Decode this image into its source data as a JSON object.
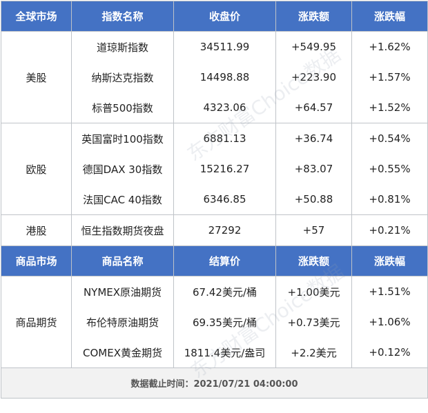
{
  "header_global": [
    "全球市场",
    "指数名称",
    "收盘价",
    "涨跌额",
    "涨跌幅"
  ],
  "groups_global": [
    {
      "region": "美股",
      "rows": [
        [
          "道琼斯指数",
          "34511.99",
          "+549.95",
          "+1.62%"
        ],
        [
          "纳斯达克指数",
          "14498.88",
          "+223.90",
          "+1.57%"
        ],
        [
          "标普500指数",
          "4323.06",
          "+64.57",
          "+1.52%"
        ]
      ]
    },
    {
      "region": "欧股",
      "rows": [
        [
          "英国富时100指数",
          "6881.13",
          "+36.74",
          "+0.54%"
        ],
        [
          "德国DAX 30指数",
          "15216.27",
          "+83.07",
          "+0.55%"
        ],
        [
          "法国CAC 40指数",
          "6346.85",
          "+50.88",
          "+0.81%"
        ]
      ]
    },
    {
      "region": "港股",
      "rows": [
        [
          "恒生指数期货夜盘",
          "27292",
          "+57",
          "+0.21%"
        ]
      ]
    }
  ],
  "header_commodity": [
    "商品市场",
    "商品名称",
    "结算价",
    "涨跌额",
    "涨跌幅"
  ],
  "groups_commodity": [
    {
      "region": "商品期货",
      "rows": [
        [
          "NYMEX原油期货",
          "67.42美元/桶",
          "+1.00美元",
          "+1.51%"
        ],
        [
          "布伦特原油期货",
          "69.35美元/桶",
          "+0.73美元",
          "+1.06%"
        ],
        [
          "COMEX黄金期货",
          "1811.4美元/盎司",
          "+2.2美元",
          "+0.12%"
        ]
      ]
    }
  ],
  "footer": "数据截止时间：2021/07/21 04:00:00",
  "watermark": "东方财富Choice数据",
  "colors": {
    "header_bg": "#4472c4",
    "header_text": "#ffffff",
    "border": "#bfc3c8",
    "footer_bg": "#f2f2f2"
  }
}
